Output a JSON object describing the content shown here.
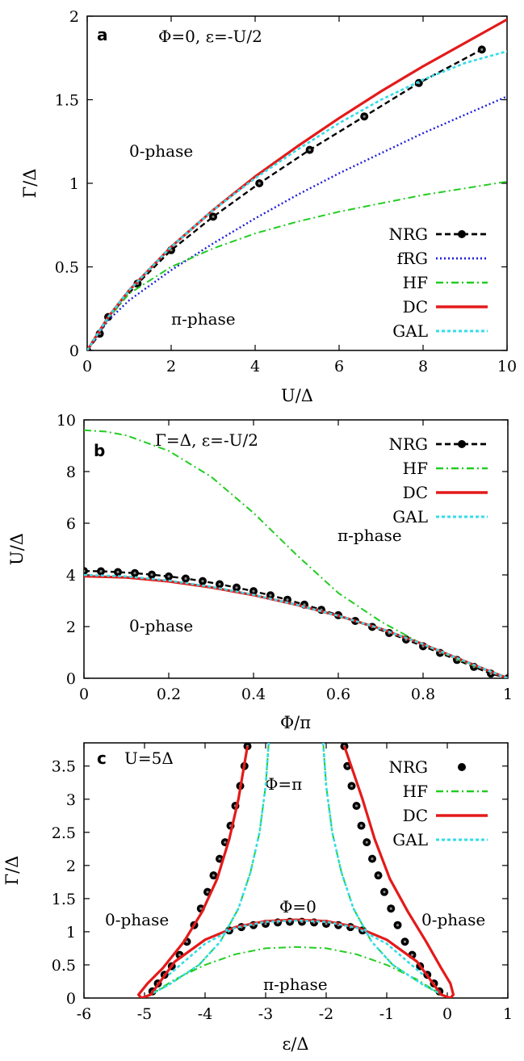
{
  "chart_data": [
    {
      "panel": "a",
      "type": "line",
      "xlabel": "U/Δ",
      "ylabel": "Γ/Δ",
      "xlim": [
        0,
        10
      ],
      "ylim": [
        0,
        2
      ],
      "xticks": [
        0,
        2,
        4,
        6,
        8,
        10
      ],
      "yticks": [
        0,
        0.5,
        1,
        1.5,
        2
      ],
      "ytick_labels": [
        "0",
        "0.5",
        "1",
        "1.5",
        "2"
      ],
      "annotations": {
        "condition": "Φ=0, ε=-U/2",
        "upper_region": "0-phase",
        "lower_region": "π-phase"
      },
      "legend": "right",
      "series": [
        {
          "name": "NRG",
          "style": "dashed-markers",
          "color": "#000000",
          "x": [
            0,
            0.3,
            0.5,
            1.2,
            2,
            3,
            4.1,
            5.3,
            6.6,
            7.9,
            9.4
          ],
          "y": [
            0,
            0.1,
            0.2,
            0.4,
            0.6,
            0.8,
            1.0,
            1.2,
            1.4,
            1.6,
            1.8
          ]
        },
        {
          "name": "fRG",
          "style": "dotted",
          "color": "#1f1fd8",
          "x": [
            0,
            0.5,
            1,
            2,
            3,
            4,
            5,
            6,
            7,
            8,
            9,
            10
          ],
          "y": [
            0,
            0.18,
            0.3,
            0.48,
            0.64,
            0.79,
            0.93,
            1.06,
            1.18,
            1.3,
            1.41,
            1.52
          ]
        },
        {
          "name": "HF",
          "style": "dashdot",
          "color": "#22cc22",
          "x": [
            0,
            0.5,
            1,
            2,
            3,
            4,
            5,
            6,
            7,
            8,
            9,
            10
          ],
          "y": [
            0,
            0.19,
            0.34,
            0.5,
            0.61,
            0.7,
            0.77,
            0.83,
            0.88,
            0.93,
            0.97,
            1.01
          ]
        },
        {
          "name": "DC",
          "style": "solid",
          "color": "#e41a1a",
          "x": [
            0,
            0.5,
            1,
            2,
            3,
            4,
            5,
            6,
            7,
            8,
            9,
            10
          ],
          "y": [
            0,
            0.2,
            0.36,
            0.62,
            0.84,
            1.04,
            1.22,
            1.39,
            1.55,
            1.7,
            1.84,
            1.98
          ]
        },
        {
          "name": "GAL",
          "style": "dotted",
          "color": "#33dde8",
          "x": [
            0,
            0.5,
            1,
            2,
            3,
            4,
            5,
            6,
            7,
            8,
            9,
            10
          ],
          "y": [
            0,
            0.2,
            0.36,
            0.62,
            0.84,
            1.03,
            1.2,
            1.36,
            1.5,
            1.62,
            1.72,
            1.79
          ]
        }
      ]
    },
    {
      "panel": "b",
      "type": "line",
      "xlabel": "Φ/π",
      "ylabel": "U/Δ",
      "xlim": [
        0,
        1
      ],
      "ylim": [
        0,
        10
      ],
      "xticks": [
        0,
        0.2,
        0.4,
        0.6,
        0.8,
        1
      ],
      "yticks": [
        0,
        2,
        4,
        6,
        8,
        10
      ],
      "annotations": {
        "condition": "Γ=Δ, ε=-U/2",
        "upper_region": "π-phase",
        "lower_region": "0-phase"
      },
      "legend": "top-right",
      "series": [
        {
          "name": "NRG",
          "style": "dashed-markers",
          "color": "#000000",
          "x": [
            0,
            0.04,
            0.08,
            0.12,
            0.16,
            0.2,
            0.24,
            0.28,
            0.32,
            0.36,
            0.4,
            0.44,
            0.48,
            0.52,
            0.56,
            0.6,
            0.64,
            0.68,
            0.72,
            0.76,
            0.8,
            0.84,
            0.88,
            0.92,
            0.96,
            1.0
          ],
          "y": [
            4.15,
            4.14,
            4.11,
            4.07,
            4.01,
            3.94,
            3.86,
            3.76,
            3.64,
            3.51,
            3.37,
            3.21,
            3.04,
            2.85,
            2.65,
            2.44,
            2.22,
            1.99,
            1.75,
            1.5,
            1.24,
            0.98,
            0.71,
            0.44,
            0.18,
            0.0
          ]
        },
        {
          "name": "HF",
          "style": "dashdot",
          "color": "#22cc22",
          "x": [
            0,
            0.05,
            0.1,
            0.2,
            0.3,
            0.4,
            0.5,
            0.6,
            0.7,
            0.8,
            0.9,
            0.95,
            1.0
          ],
          "y": [
            9.6,
            9.55,
            9.4,
            8.8,
            7.8,
            6.4,
            4.8,
            3.3,
            2.2,
            1.3,
            0.6,
            0.3,
            0.0
          ]
        },
        {
          "name": "DC",
          "style": "solid",
          "color": "#e41a1a",
          "x": [
            0,
            0.1,
            0.2,
            0.3,
            0.4,
            0.5,
            0.6,
            0.7,
            0.8,
            0.9,
            0.95,
            1.0
          ],
          "y": [
            3.95,
            3.9,
            3.75,
            3.52,
            3.22,
            2.85,
            2.42,
            1.92,
            1.32,
            0.65,
            0.32,
            0.0
          ]
        },
        {
          "name": "GAL",
          "style": "dotted",
          "color": "#33dde8",
          "x": [
            0,
            0.1,
            0.2,
            0.3,
            0.4,
            0.5,
            0.6,
            0.7,
            0.8,
            0.9,
            0.95,
            1.0
          ],
          "y": [
            4.0,
            3.94,
            3.78,
            3.54,
            3.23,
            2.85,
            2.42,
            1.92,
            1.32,
            0.65,
            0.32,
            0.0
          ]
        }
      ]
    },
    {
      "panel": "c",
      "type": "line",
      "xlabel": "ε/Δ",
      "ylabel": "Γ/Δ",
      "xlim": [
        -6,
        1
      ],
      "ylim": [
        0,
        3.85
      ],
      "xticks": [
        -6,
        -5,
        -4,
        -3,
        -2,
        -1,
        0,
        1
      ],
      "yticks": [
        0,
        0.5,
        1,
        1.5,
        2,
        2.5,
        3,
        3.5
      ],
      "ytick_labels": [
        "0",
        "0.5",
        "1",
        "1.5",
        "2",
        "2.5",
        "3",
        "3.5"
      ],
      "annotations": {
        "condition": "U=5Δ",
        "phi_pi": "Φ=π",
        "phi_zero": "Φ=0",
        "left_region": "0-phase",
        "right_region": "0-phase",
        "bottom_region": "π-phase"
      },
      "legend": "top-right",
      "series": [
        {
          "name": "NRG",
          "style": "markers",
          "color": "#000000",
          "x": [
            -3.3,
            -3.35,
            -3.42,
            -3.5,
            -3.58,
            -3.67,
            -3.76,
            -3.86,
            -3.96,
            -4.07,
            -4.18,
            -4.3,
            -4.42,
            -4.55,
            -4.67,
            -4.78,
            -4.87,
            -1.7,
            -1.65,
            -1.58,
            -1.5,
            -1.42,
            -1.33,
            -1.24,
            -1.14,
            -1.04,
            -0.93,
            -0.82,
            -0.7,
            -0.58,
            -0.45,
            -0.33,
            -0.22,
            -0.13,
            -3.6,
            -3.4,
            -3.2,
            -3.0,
            -2.8,
            -2.6,
            -2.4,
            -2.2,
            -2.0,
            -1.8,
            -1.6,
            -1.4
          ],
          "y": [
            3.8,
            3.5,
            3.2,
            2.9,
            2.6,
            2.35,
            2.1,
            1.85,
            1.6,
            1.35,
            1.1,
            0.85,
            0.65,
            0.48,
            0.35,
            0.22,
            0.1,
            3.8,
            3.5,
            3.2,
            2.9,
            2.6,
            2.35,
            2.1,
            1.85,
            1.6,
            1.35,
            1.1,
            0.85,
            0.65,
            0.48,
            0.35,
            0.22,
            0.1,
            1.02,
            1.07,
            1.1,
            1.12,
            1.14,
            1.15,
            1.15,
            1.14,
            1.12,
            1.1,
            1.07,
            1.02
          ]
        },
        {
          "name": "HF",
          "style": "dashdot",
          "color": "#22cc22",
          "x": [
            -2.95,
            -3.0,
            -3.1,
            -3.25,
            -3.45,
            -3.75,
            -4.1,
            -4.6,
            -4.85,
            -2.05,
            -2.0,
            -1.9,
            -1.75,
            -1.55,
            -1.25,
            -0.9,
            -0.4,
            -0.15,
            -4.9,
            -4.5,
            -4.0,
            -3.5,
            -3.0,
            -2.5,
            -2.0,
            -1.5,
            -1.0,
            -0.5,
            -0.1
          ],
          "y": [
            3.85,
            3.2,
            2.5,
            1.9,
            1.35,
            0.85,
            0.5,
            0.2,
            0.08,
            3.85,
            3.2,
            2.5,
            1.9,
            1.35,
            0.85,
            0.5,
            0.2,
            0.08,
            0.05,
            0.28,
            0.5,
            0.66,
            0.75,
            0.77,
            0.75,
            0.66,
            0.5,
            0.28,
            0.05
          ]
        },
        {
          "name": "DC",
          "style": "solid",
          "color": "#e41a1a",
          "x": [
            -3.3,
            -3.45,
            -3.6,
            -3.8,
            -4.05,
            -4.35,
            -4.7,
            -4.95,
            -5.1,
            -5.05,
            -4.9,
            -4.5,
            -4.0,
            -3.5,
            -3.0,
            -2.5,
            -2.0,
            -1.5,
            -1.0,
            -0.5,
            -0.1,
            0.05,
            0.1,
            0.05,
            -0.1,
            -0.35,
            -0.65,
            -0.95,
            -1.2,
            -1.4,
            -1.55,
            -1.7
          ],
          "y": [
            3.8,
            3.0,
            2.4,
            1.8,
            1.3,
            0.85,
            0.45,
            0.22,
            0.05,
            0.0,
            0.05,
            0.55,
            0.88,
            1.07,
            1.16,
            1.18,
            1.16,
            1.07,
            0.88,
            0.55,
            0.05,
            0.0,
            0.05,
            0.22,
            0.45,
            0.85,
            1.3,
            1.8,
            2.4,
            3.0,
            3.4,
            3.8
          ]
        },
        {
          "name": "GAL",
          "style": "dotted",
          "color": "#33dde8",
          "x": [
            -2.95,
            -3.0,
            -3.1,
            -3.25,
            -3.45,
            -3.75,
            -4.1,
            -4.6,
            -4.85,
            -2.05,
            -2.0,
            -1.9,
            -1.75,
            -1.55,
            -1.25,
            -0.9,
            -0.4,
            -0.15,
            -4.6,
            -4.0,
            -3.5,
            -3.0,
            -2.5,
            -2.0,
            -1.5,
            -1.0,
            -0.4
          ],
          "y": [
            3.85,
            3.2,
            2.5,
            1.9,
            1.35,
            0.85,
            0.5,
            0.2,
            0.08,
            3.85,
            3.2,
            2.5,
            1.9,
            1.35,
            0.85,
            0.5,
            0.2,
            0.08,
            0.35,
            0.82,
            1.06,
            1.15,
            1.17,
            1.15,
            1.06,
            0.82,
            0.35
          ]
        }
      ]
    }
  ]
}
